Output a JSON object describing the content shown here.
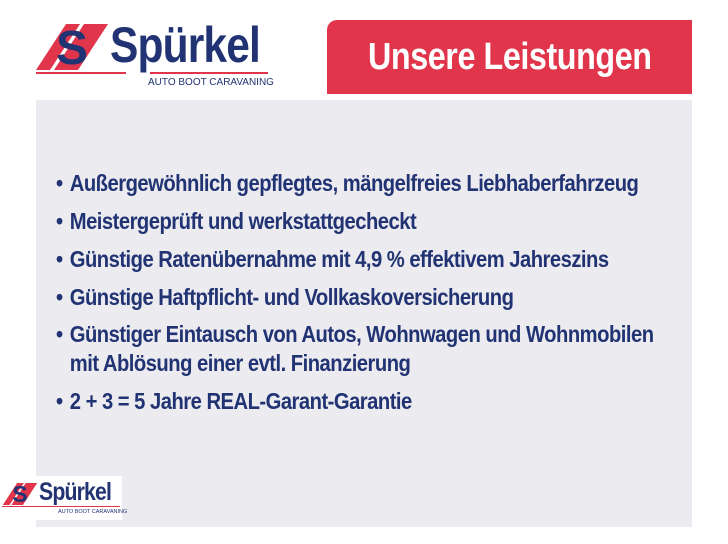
{
  "brand": {
    "name": "Spürkel",
    "tagline": "AUTO  BOOT  CARAVANING",
    "colors": {
      "navy": "#223373",
      "red": "#e0354a"
    }
  },
  "banner": {
    "title": "Unsere Leistungen"
  },
  "services": [
    "Außergewöhnlich gepflegtes, mängelfreies Liebhaberfahrzeug",
    "Meistergeprüft und werkstattgecheckt",
    "Günstige Ratenübernahme mit 4,9 % effektivem Jahreszins",
    "Günstige Haftpflicht- und Vollkaskoversicherung",
    "Günstiger Eintausch von Autos, Wohnwagen und Wohnmobilen",
    "mit Ablösung einer evtl. Finanzierung",
    "2 + 3 = 5 Jahre REAL-Garant-Garantie"
  ]
}
